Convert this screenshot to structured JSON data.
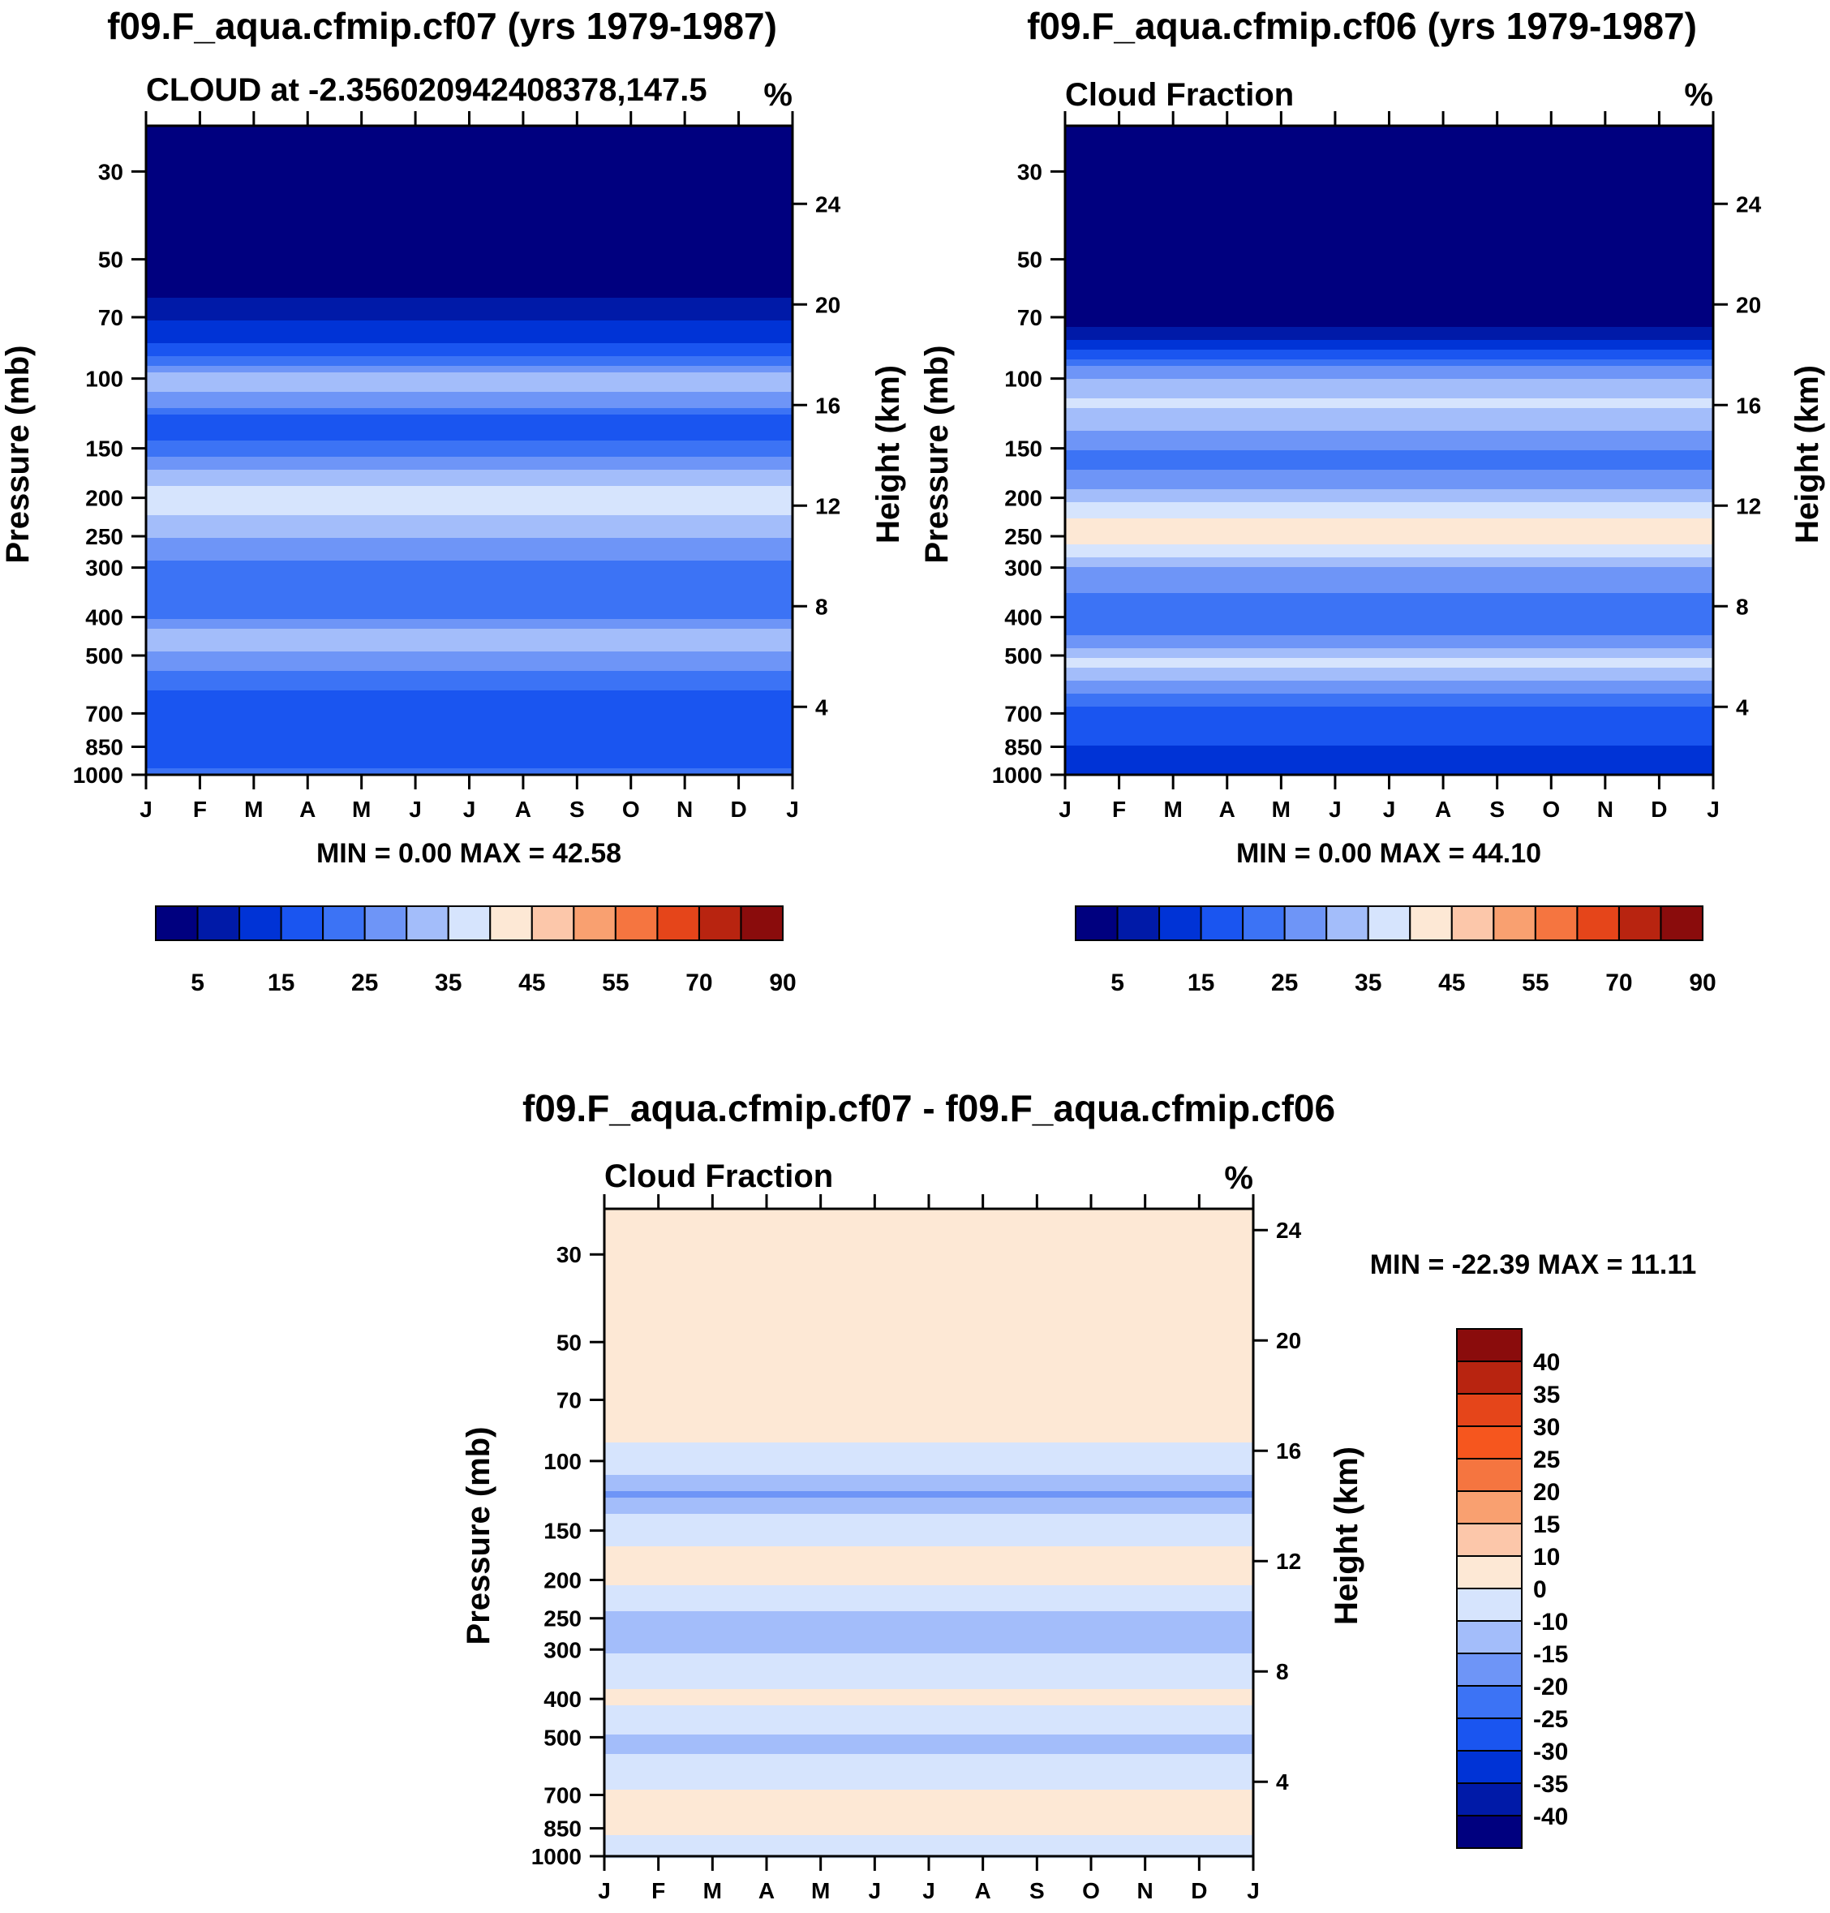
{
  "chart_data": [
    {
      "type": "heatmap",
      "title": "f09.F_aqua.cfmip.cf07 (yrs 1979-1987)",
      "subtitle": "CLOUD at -2.356020942408378,147.5",
      "units": "%",
      "xlabel": "",
      "ylabel": "Pressure (mb)",
      "y2label": "Height (km)",
      "x_ticks": [
        "J",
        "F",
        "M",
        "A",
        "M",
        "J",
        "J",
        "A",
        "S",
        "O",
        "N",
        "D",
        "J"
      ],
      "y_ticks": [
        "30",
        "50",
        "70",
        "100",
        "150",
        "200",
        "250",
        "300",
        "400",
        "500",
        "700",
        "850",
        "1000"
      ],
      "y2_ticks": [
        "24",
        "20",
        "16",
        "12",
        "8",
        "4"
      ],
      "minmax": "MIN =    0.00 MAX =  42.58",
      "colorbar_labels": [
        "5",
        "15",
        "25",
        "35",
        "45",
        "55",
        "70",
        "90"
      ],
      "profile": [
        {
          "p": 30,
          "v": 2
        },
        {
          "p": 50,
          "v": 2
        },
        {
          "p": 62,
          "v": 5
        },
        {
          "p": 70,
          "v": 9
        },
        {
          "p": 80,
          "v": 14
        },
        {
          "p": 90,
          "v": 22
        },
        {
          "p": 100,
          "v": 33
        },
        {
          "p": 115,
          "v": 27
        },
        {
          "p": 130,
          "v": 16
        },
        {
          "p": 150,
          "v": 22
        },
        {
          "p": 170,
          "v": 30
        },
        {
          "p": 200,
          "v": 38
        },
        {
          "p": 230,
          "v": 34
        },
        {
          "p": 260,
          "v": 29
        },
        {
          "p": 300,
          "v": 23
        },
        {
          "p": 350,
          "v": 20
        },
        {
          "p": 400,
          "v": 24
        },
        {
          "p": 450,
          "v": 34
        },
        {
          "p": 500,
          "v": 29
        },
        {
          "p": 580,
          "v": 22
        },
        {
          "p": 700,
          "v": 16
        },
        {
          "p": 850,
          "v": 15
        },
        {
          "p": 950,
          "v": 19
        },
        {
          "p": 1000,
          "v": 24
        }
      ]
    },
    {
      "type": "heatmap",
      "title": "f09.F_aqua.cfmip.cf06 (yrs 1979-1987)",
      "subtitle": "Cloud Fraction",
      "units": "%",
      "xlabel": "",
      "ylabel": "Pressure (mb)",
      "y2label": "Height (km)",
      "x_ticks": [
        "J",
        "F",
        "M",
        "A",
        "M",
        "J",
        "J",
        "A",
        "S",
        "O",
        "N",
        "D",
        "J"
      ],
      "y_ticks": [
        "30",
        "50",
        "70",
        "100",
        "150",
        "200",
        "250",
        "300",
        "400",
        "500",
        "700",
        "850",
        "1000"
      ],
      "y2_ticks": [
        "24",
        "20",
        "16",
        "12",
        "8",
        "4"
      ],
      "minmax": "MIN =    0.00 MAX =  44.10",
      "colorbar_labels": [
        "5",
        "15",
        "25",
        "35",
        "45",
        "55",
        "70",
        "90"
      ],
      "profile": [
        {
          "p": 30,
          "v": 2
        },
        {
          "p": 70,
          "v": 2
        },
        {
          "p": 78,
          "v": 8
        },
        {
          "p": 85,
          "v": 15
        },
        {
          "p": 92,
          "v": 24
        },
        {
          "p": 100,
          "v": 30
        },
        {
          "p": 115,
          "v": 36
        },
        {
          "p": 130,
          "v": 32
        },
        {
          "p": 160,
          "v": 22
        },
        {
          "p": 190,
          "v": 30
        },
        {
          "p": 215,
          "v": 38
        },
        {
          "p": 240,
          "v": 43
        },
        {
          "p": 275,
          "v": 38
        },
        {
          "p": 300,
          "v": 30
        },
        {
          "p": 360,
          "v": 24
        },
        {
          "p": 420,
          "v": 21
        },
        {
          "p": 480,
          "v": 30
        },
        {
          "p": 520,
          "v": 37
        },
        {
          "p": 600,
          "v": 27
        },
        {
          "p": 700,
          "v": 17
        },
        {
          "p": 850,
          "v": 15
        },
        {
          "p": 1000,
          "v": 14
        }
      ]
    },
    {
      "type": "heatmap",
      "title": "f09.F_aqua.cfmip.cf07 - f09.F_aqua.cfmip.cf06",
      "subtitle": "Cloud Fraction",
      "units": "%",
      "xlabel": "",
      "ylabel": "Pressure (mb)",
      "y2label": "Height (km)",
      "x_ticks": [
        "J",
        "F",
        "M",
        "A",
        "M",
        "J",
        "J",
        "A",
        "S",
        "O",
        "N",
        "D",
        "J"
      ],
      "y_ticks": [
        "30",
        "50",
        "70",
        "100",
        "150",
        "200",
        "250",
        "300",
        "400",
        "500",
        "700",
        "850",
        "1000"
      ],
      "y2_ticks": [
        "24",
        "20",
        "16",
        "12",
        "8",
        "4"
      ],
      "minmax": "MIN = -22.39 MAX =  11.11",
      "colorbar_labels": [
        "40",
        "35",
        "30",
        "25",
        "20",
        "15",
        "10",
        "0",
        "-10",
        "-15",
        "-20",
        "-25",
        "-30",
        "-35",
        "-40"
      ],
      "profile": [
        {
          "p": 30,
          "v": 3
        },
        {
          "p": 85,
          "v": 3
        },
        {
          "p": 100,
          "v": -5
        },
        {
          "p": 112,
          "v": -12
        },
        {
          "p": 122,
          "v": -16
        },
        {
          "p": 132,
          "v": -11
        },
        {
          "p": 150,
          "v": -5
        },
        {
          "p": 175,
          "v": 4
        },
        {
          "p": 200,
          "v": 2
        },
        {
          "p": 220,
          "v": -5
        },
        {
          "p": 250,
          "v": -12
        },
        {
          "p": 275,
          "v": -15
        },
        {
          "p": 300,
          "v": -11
        },
        {
          "p": 340,
          "v": -5
        },
        {
          "p": 400,
          "v": 3
        },
        {
          "p": 450,
          "v": -5
        },
        {
          "p": 520,
          "v": -14
        },
        {
          "p": 560,
          "v": -9
        },
        {
          "p": 620,
          "v": -4
        },
        {
          "p": 700,
          "v": 1
        },
        {
          "p": 850,
          "v": 2
        },
        {
          "p": 950,
          "v": -4
        },
        {
          "p": 1000,
          "v": -4
        }
      ]
    }
  ]
}
